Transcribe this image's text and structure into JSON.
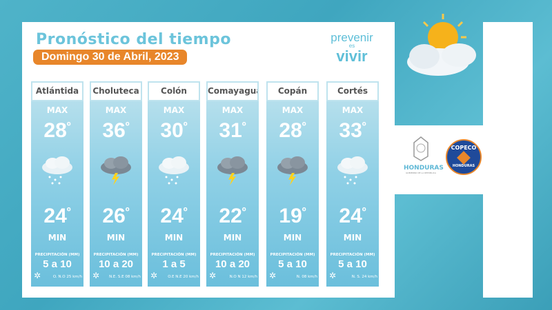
{
  "title": "Pronóstico del tiempo",
  "date": "Domingo 30 de Abril, 2023",
  "logo": {
    "line1": "prevenir",
    "line2": "es",
    "line3": "vivir"
  },
  "labels": {
    "max": "MAX",
    "min": "MIN",
    "precip": "PRECIPITACIÓN (MM)"
  },
  "degree": "º",
  "partners": {
    "honduras": "HONDURAS",
    "honduras_sub": "GOBIERNO DE LA REPÚBLICA",
    "copeco": "COPECO",
    "copeco_sub": "HONDURAS"
  },
  "colors": {
    "accent": "#e8862a",
    "title": "#6cc4db",
    "card": "#8fd0e6"
  },
  "departments": [
    {
      "name": "Atlántida",
      "max": "28",
      "min": "24",
      "icon": "cloud-rain-icon",
      "precip": "5 a 10",
      "wind": "O. N.O 25 km/h"
    },
    {
      "name": "Choluteca",
      "max": "36",
      "min": "26",
      "icon": "thunderstorm-icon",
      "precip": "10 a 20",
      "wind": "N.E. S.E 08 km/h"
    },
    {
      "name": "Colón",
      "max": "30",
      "min": "24",
      "icon": "cloud-rain-icon",
      "precip": "1 a 5",
      "wind": "O.E N.E 20 km/h"
    },
    {
      "name": "Comayagua",
      "max": "31",
      "min": "22",
      "icon": "thunderstorm-icon",
      "precip": "10 a 20",
      "wind": "N.O N 12 km/h"
    },
    {
      "name": "Copán",
      "max": "28",
      "min": "19",
      "icon": "thunderstorm-icon",
      "precip": "5 a 10",
      "wind": "N. 08 km/h"
    },
    {
      "name": "Cortés",
      "max": "33",
      "min": "24",
      "icon": "cloud-rain-icon",
      "precip": "5 a 10",
      "wind": "N. S. 24 km/h"
    }
  ]
}
